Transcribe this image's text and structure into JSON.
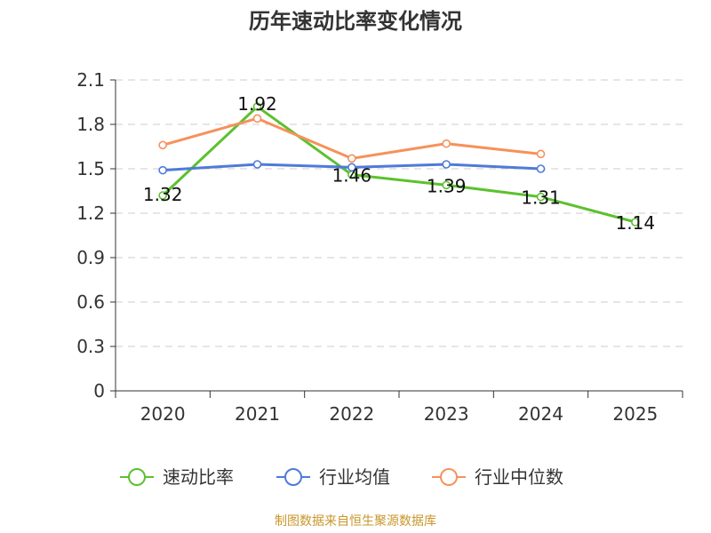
{
  "chart_data": {
    "type": "line",
    "title": "历年速动比率变化情况",
    "categories": [
      "2020",
      "2021",
      "2022",
      "2023",
      "2024",
      "2025"
    ],
    "ylim": [
      0,
      2.1
    ],
    "yticks": [
      "0",
      "0.3",
      "0.6",
      "0.9",
      "1.2",
      "1.5",
      "1.8",
      "2.1"
    ],
    "grid": true,
    "legend_position": "bottom",
    "series": [
      {
        "name": "速动比率",
        "color": "#5cc12f",
        "values": [
          1.32,
          1.92,
          1.46,
          1.39,
          1.31,
          1.14
        ],
        "labels": [
          "1.32",
          "1.92",
          "1.46",
          "1.39",
          "1.31",
          "1.14"
        ]
      },
      {
        "name": "行业均值",
        "color": "#4f7ad9",
        "values": [
          1.49,
          1.53,
          1.51,
          1.53,
          1.5,
          null
        ]
      },
      {
        "name": "行业中位数",
        "color": "#f5925b",
        "values": [
          1.66,
          1.84,
          1.57,
          1.67,
          1.6,
          null
        ]
      }
    ],
    "source": "制图数据来自恒生聚源数据库"
  }
}
